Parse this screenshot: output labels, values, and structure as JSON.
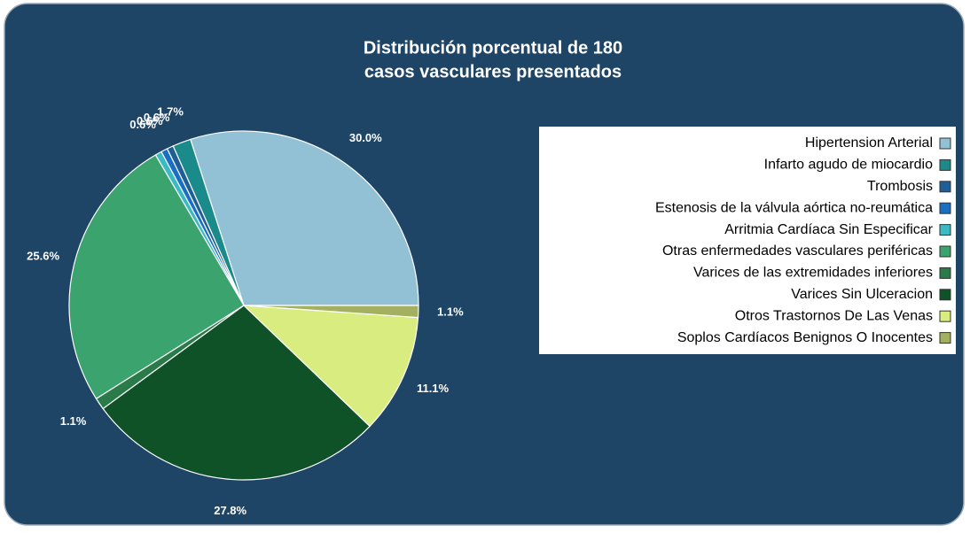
{
  "chart_data": {
    "type": "pie",
    "title": [
      "Distribución porcentual de 180",
      "casos vasculares presentados"
    ],
    "categories": [
      "Hipertension Arterial",
      "Infarto agudo de miocardio",
      "Trombosis",
      "Estenosis de la válvula aórtica no-reumática",
      "Arritmia Cardíaca Sin Especificar",
      "Otras enfermedades vasculares periféricas",
      "Varices de las extremidades inferiores",
      "Varices Sin Ulceracion",
      "Otros Trastornos De Las Venas",
      "Soplos Cardíacos Benignos O Inocentes"
    ],
    "values": [
      30.0,
      1.7,
      0.6,
      0.6,
      0.6,
      25.6,
      1.1,
      27.8,
      11.1,
      1.1
    ],
    "value_labels": [
      "30.0%",
      "1.7%",
      "0.6%",
      "0.6%",
      "0.6%",
      "25.6%",
      "1.1%",
      "27.8%",
      "11.1%",
      "1.1%"
    ],
    "colors": [
      "#92c0d4",
      "#1a8a8a",
      "#1f5f99",
      "#1a6fc4",
      "#3bbac4",
      "#3aa36e",
      "#2a7a4a",
      "#0f5228",
      "#d8ec80",
      "#a3b060"
    ],
    "legend": "right"
  }
}
